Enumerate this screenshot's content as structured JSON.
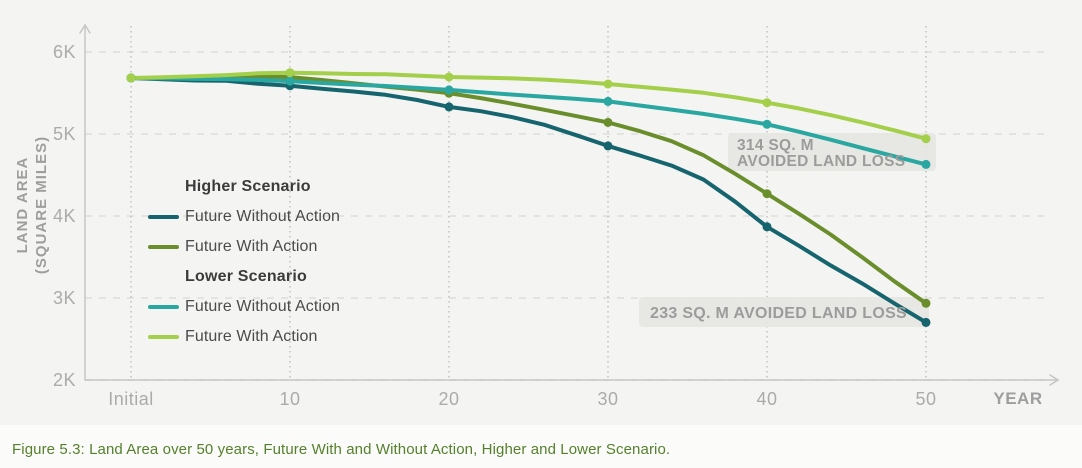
{
  "page": {
    "caption": "Figure 5.3: Land Area over 50 years, Future With and Without Action, Higher and Lower Scenario."
  },
  "chart_data": {
    "type": "line",
    "title": "",
    "xlabel": "YEAR",
    "ylabel": "LAND AREA (SQUARE MILES)",
    "ylabel_lines": [
      "LAND AREA",
      "(SQUARE MILES)"
    ],
    "xlim": [
      0,
      50
    ],
    "ylim": [
      2000,
      6000
    ],
    "grid": "dashed horizontal at y ticks, dotted vertical at x ticks",
    "legend_position": "inside upper-left of plot",
    "x_tick_years": [
      0,
      10,
      20,
      30,
      40,
      50
    ],
    "x_tick_labels": [
      "Initial",
      "10",
      "20",
      "30",
      "40",
      "50"
    ],
    "y_tick_values": [
      6000,
      5000,
      4000,
      3000,
      2000
    ],
    "y_tick_labels": [
      "6K",
      "5K",
      "4K",
      "3K",
      "2K"
    ],
    "marker_years": [
      0,
      10,
      20,
      30,
      40,
      50
    ],
    "x_step_years": 2,
    "series": [
      {
        "id": "higher-without-action",
        "group": "Higher Scenario",
        "name": "Future Without Action",
        "color": "#16646e",
        "x": [
          0,
          2,
          4,
          6,
          8,
          10,
          12,
          14,
          16,
          18,
          20,
          22,
          24,
          26,
          28,
          30,
          32,
          34,
          36,
          38,
          40,
          42,
          44,
          46,
          48,
          50
        ],
        "values": [
          5683,
          5668,
          5652,
          5650,
          5612,
          5588,
          5552,
          5518,
          5478,
          5415,
          5330,
          5278,
          5205,
          5112,
          4985,
          4855,
          4738,
          4615,
          4445,
          4175,
          3868,
          3638,
          3398,
          3175,
          2935,
          2702
        ]
      },
      {
        "id": "higher-with-action",
        "group": "Higher Scenario",
        "name": "Future With Action",
        "color": "#6b8e2d",
        "x": [
          0,
          2,
          4,
          6,
          8,
          10,
          12,
          14,
          16,
          18,
          20,
          22,
          24,
          26,
          28,
          30,
          32,
          34,
          36,
          38,
          40,
          42,
          44,
          46,
          48,
          50
        ],
        "values": [
          5683,
          5683,
          5686,
          5694,
          5703,
          5694,
          5658,
          5618,
          5578,
          5542,
          5498,
          5438,
          5368,
          5295,
          5218,
          5142,
          5035,
          4912,
          4742,
          4515,
          4272,
          4028,
          3775,
          3495,
          3205,
          2935
        ]
      },
      {
        "id": "lower-without-action",
        "group": "Lower Scenario",
        "name": "Future Without Action",
        "color": "#2aa7a1",
        "x": [
          0,
          2,
          4,
          6,
          8,
          10,
          12,
          14,
          16,
          18,
          20,
          22,
          24,
          26,
          28,
          30,
          32,
          34,
          36,
          38,
          40,
          42,
          44,
          46,
          48,
          50
        ],
        "values": [
          5683,
          5678,
          5672,
          5670,
          5660,
          5645,
          5622,
          5603,
          5585,
          5562,
          5538,
          5508,
          5480,
          5455,
          5428,
          5398,
          5348,
          5298,
          5245,
          5185,
          5118,
          5028,
          4930,
          4828,
          4728,
          4629
        ]
      },
      {
        "id": "lower-with-action",
        "group": "Lower Scenario",
        "name": "Future With Action",
        "color": "#a3cf4b",
        "x": [
          0,
          2,
          4,
          6,
          8,
          10,
          12,
          14,
          16,
          18,
          20,
          22,
          24,
          26,
          28,
          30,
          32,
          34,
          36,
          38,
          40,
          42,
          44,
          46,
          48,
          50
        ],
        "values": [
          5683,
          5692,
          5705,
          5718,
          5740,
          5748,
          5740,
          5732,
          5728,
          5712,
          5695,
          5688,
          5678,
          5663,
          5640,
          5610,
          5575,
          5542,
          5502,
          5448,
          5382,
          5312,
          5230,
          5142,
          5045,
          4943
        ]
      }
    ],
    "annotations": [
      {
        "id": "314",
        "lines": [
          "314 SQ. M",
          "AVOIDED LAND LOSS"
        ],
        "refers_to": "Lower Scenario gap at year 50 (4943 - 4629)"
      },
      {
        "id": "233",
        "lines": [
          "233 SQ. M AVOIDED LAND LOSS"
        ],
        "refers_to": "Higher Scenario gap at year 50 (2935 - 2702)"
      }
    ],
    "legend_rows": [
      {
        "type": "title",
        "text": "Higher Scenario"
      },
      {
        "type": "item",
        "label": "Future Without Action",
        "color": "#16646e"
      },
      {
        "type": "item",
        "label": "Future With Action",
        "color": "#6b8e2d"
      },
      {
        "type": "title",
        "text": "Lower Scenario"
      },
      {
        "type": "item",
        "label": "Future Without Action",
        "color": "#2aa7a1"
      },
      {
        "type": "item",
        "label": "Future With Action",
        "color": "#a3cf4b"
      }
    ],
    "colors": {
      "background": "#f4f4f2",
      "axis_line": "#c6c6c4",
      "grid_dashed": "#dddddb",
      "grid_dotted": "#c2c2c0",
      "tick_text": "#ababab",
      "axis_title_text": "#9e9e9e",
      "annotation_text": "#9c9c9c",
      "annotation_box": "#e5e5e3",
      "legend_title_text": "#3b3b3b",
      "legend_label_text": "#4b4b4b",
      "caption_text": "#56802e"
    }
  }
}
